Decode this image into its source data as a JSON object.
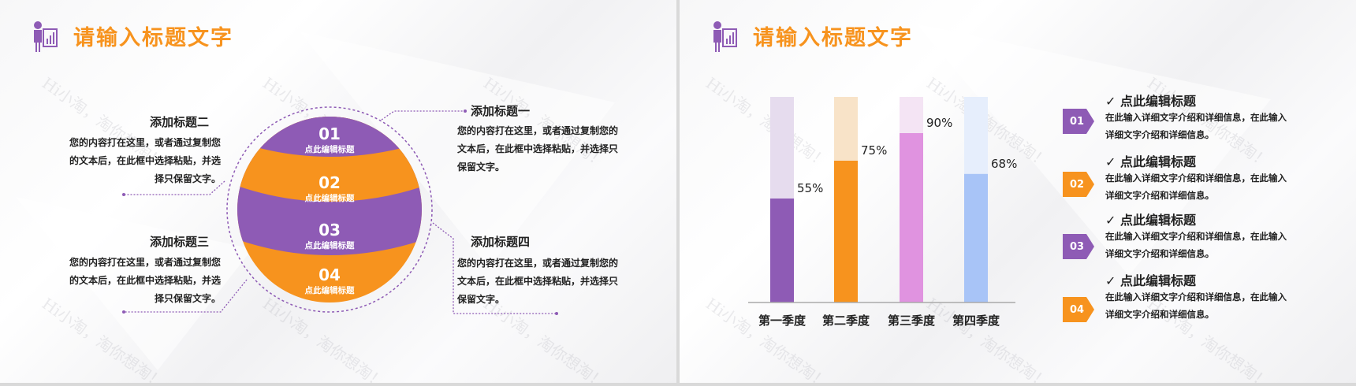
{
  "watermark": "Hi小淘，淘你想淘！",
  "colors": {
    "purple": "#8e5bb5",
    "orange": "#f7931e",
    "pink": "#e093e0",
    "blue": "#a8c4f7"
  },
  "slide1": {
    "title": "请输入标题文字",
    "segments": [
      {
        "num": "01",
        "label": "点此编辑标题"
      },
      {
        "num": "02",
        "label": "点此编辑标题"
      },
      {
        "num": "03",
        "label": "点此编辑标题"
      },
      {
        "num": "04",
        "label": "点此编辑标题"
      }
    ],
    "blocks": [
      {
        "title": "添加标题一",
        "lines": [
          "您的内容打在这里，或者通过复制您的",
          "文本后，在此框中选择粘贴，并选择只",
          "保留文字。"
        ]
      },
      {
        "title": "添加标题二",
        "lines": [
          "您的内容打在这里，或者通过复制您",
          "的文本后，在此框中选择粘贴，并选",
          "择只保留文字。"
        ]
      },
      {
        "title": "添加标题三",
        "lines": [
          "您的内容打在这里，或者通过复制您",
          "的文本后，在此框中选择粘贴，并选",
          "择只保留文字。"
        ]
      },
      {
        "title": "添加标题四",
        "lines": [
          "您的内容打在这里，或者通过复制您的",
          "文本后，在此框中选择粘贴，并选择只",
          "保留文字。"
        ]
      }
    ]
  },
  "slide2": {
    "title": "请输入标题文字",
    "chart_data": {
      "type": "bar",
      "categories": [
        "第一季度",
        "第二季度",
        "第三季度",
        "第四季度"
      ],
      "values": [
        55,
        75,
        90,
        68
      ],
      "value_labels": [
        "55%",
        "75%",
        "90%",
        "68%"
      ],
      "ylim": [
        0,
        100
      ],
      "grid": false,
      "colors": [
        "#8e5bb5",
        "#f7931e",
        "#e093e0",
        "#a8c4f7"
      ]
    },
    "items": [
      {
        "num": "01",
        "title": "✓ 点此编辑标题",
        "lines": [
          "在此输入详细文字介绍和详细信息，在此输入",
          "详细文字介绍和详细信息。"
        ]
      },
      {
        "num": "02",
        "title": "✓ 点此编辑标题",
        "lines": [
          "在此输入详细文字介绍和详细信息，在此输入",
          "详细文字介绍和详细信息。"
        ]
      },
      {
        "num": "03",
        "title": "✓ 点此编辑标题",
        "lines": [
          "在此输入详细文字介绍和详细信息，在此输入",
          "详细文字介绍和详细信息。"
        ]
      },
      {
        "num": "04",
        "title": "✓ 点此编辑标题",
        "lines": [
          "在此输入详细文字介绍和详细信息，在此输入",
          "详细文字介绍和详细信息。"
        ]
      }
    ]
  }
}
